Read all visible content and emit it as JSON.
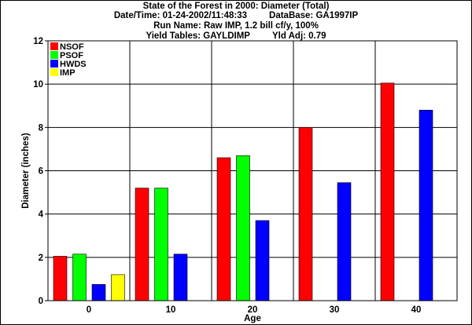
{
  "header": {
    "title": "State of the Forest in 2000: Diameter (Total)",
    "datetime": "Date/Time: 01-24-2002/11:48:33",
    "database": "DataBase: GA1997IP",
    "run_name": "Run Name: Raw IMP, 1.2 bill cf/y, 100%",
    "yield_tables": "Yield Tables: GAYLDIMP",
    "yld_adj": "Yld Adj: 0.79"
  },
  "chart_data": {
    "type": "bar",
    "title": "State of the Forest in 2000: Diameter (Total)",
    "xlabel": "Age",
    "ylabel": "Diameter (inches)",
    "categories": [
      "0",
      "10",
      "20",
      "30",
      "40"
    ],
    "ylim": [
      0,
      12
    ],
    "yticks": [
      0,
      2,
      4,
      6,
      8,
      10,
      12
    ],
    "grid": true,
    "legend_position": "top-left",
    "series": [
      {
        "name": "NSOF",
        "color": "#ff0000",
        "values": [
          2.05,
          5.2,
          6.6,
          8.0,
          10.05
        ]
      },
      {
        "name": "PSOF",
        "color": "#00ff00",
        "values": [
          2.15,
          5.2,
          6.7,
          null,
          null
        ]
      },
      {
        "name": "HWDS",
        "color": "#0000ff",
        "values": [
          0.75,
          2.15,
          3.7,
          5.45,
          8.8
        ]
      },
      {
        "name": "IMP",
        "color": "#ffff00",
        "values": [
          1.2,
          null,
          null,
          null,
          null
        ]
      }
    ]
  }
}
